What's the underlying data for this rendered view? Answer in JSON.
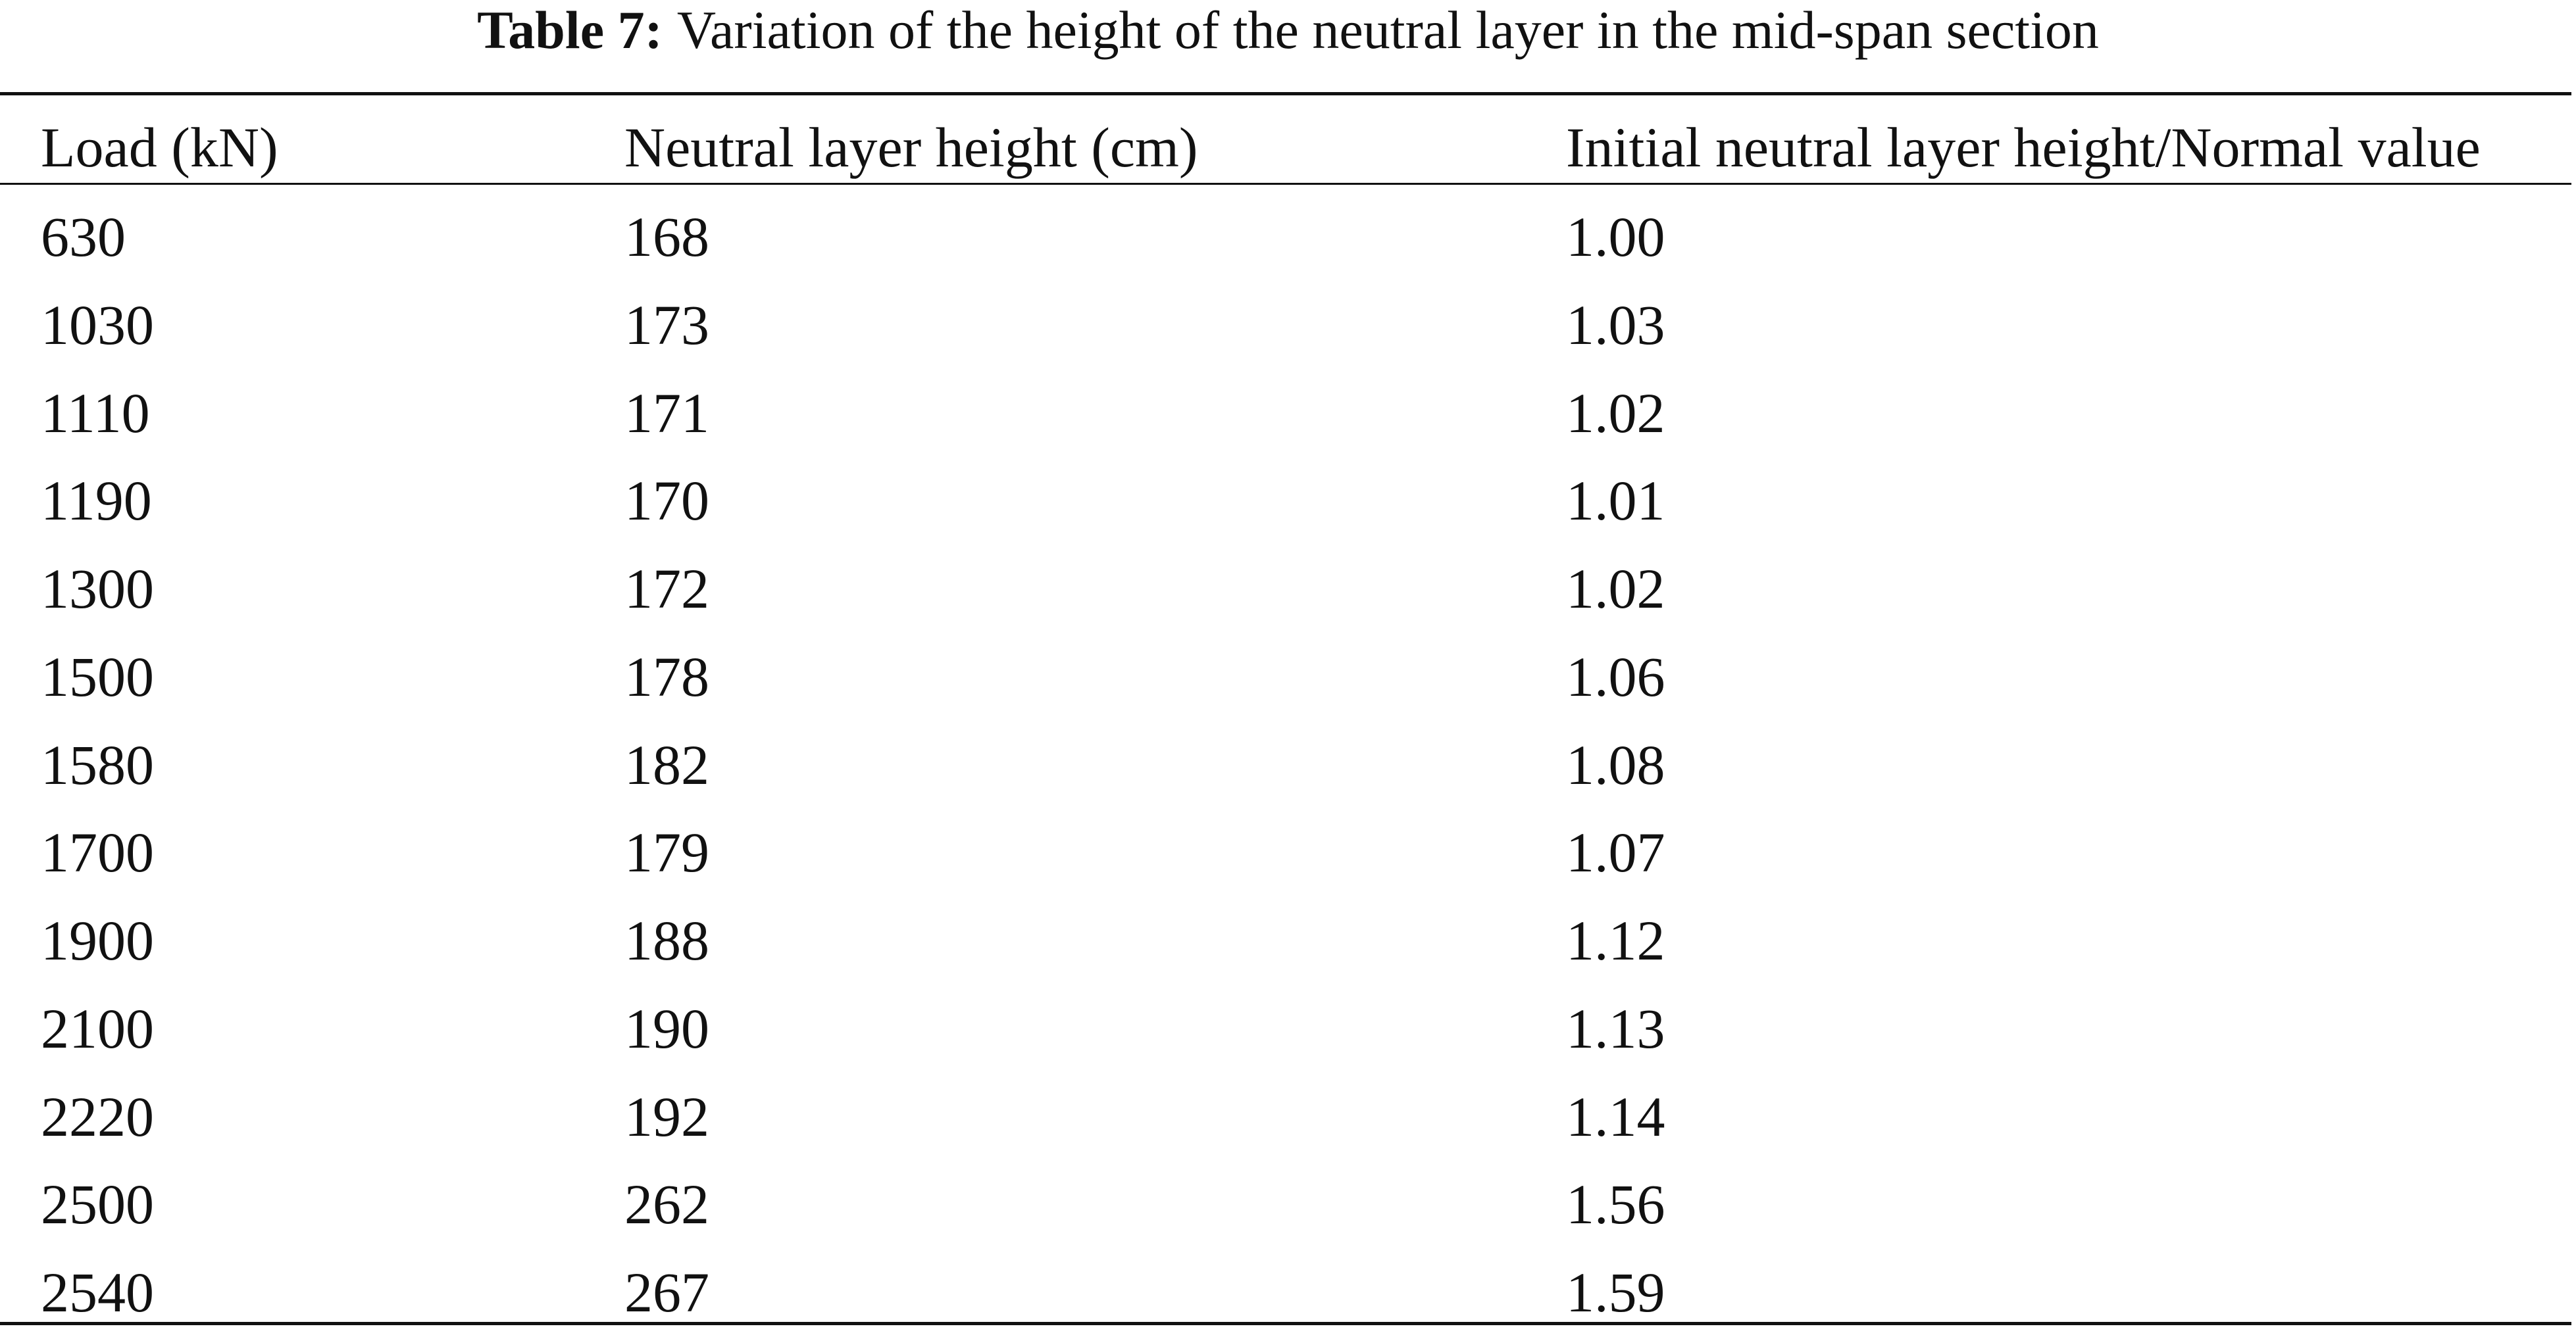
{
  "caption": {
    "label": "Table 7:",
    "text": "Variation of the height of the neutral layer in the mid-span section"
  },
  "table": {
    "header": [
      "Load (kN)",
      "Neutral layer height (cm)",
      "Initial neutral layer height/Normal value"
    ],
    "rows": [
      [
        "630",
        "168",
        "1.00"
      ],
      [
        "1030",
        "173",
        "1.03"
      ],
      [
        "1110",
        "171",
        "1.02"
      ],
      [
        "1190",
        "170",
        "1.01"
      ],
      [
        "1300",
        "172",
        "1.02"
      ],
      [
        "1500",
        "178",
        "1.06"
      ],
      [
        "1580",
        "182",
        "1.08"
      ],
      [
        "1700",
        "179",
        "1.07"
      ],
      [
        "1900",
        "188",
        "1.12"
      ],
      [
        "2100",
        "190",
        "1.13"
      ],
      [
        "2220",
        "192",
        "1.14"
      ],
      [
        "2500",
        "262",
        "1.56"
      ],
      [
        "2540",
        "267",
        "1.59"
      ]
    ]
  }
}
